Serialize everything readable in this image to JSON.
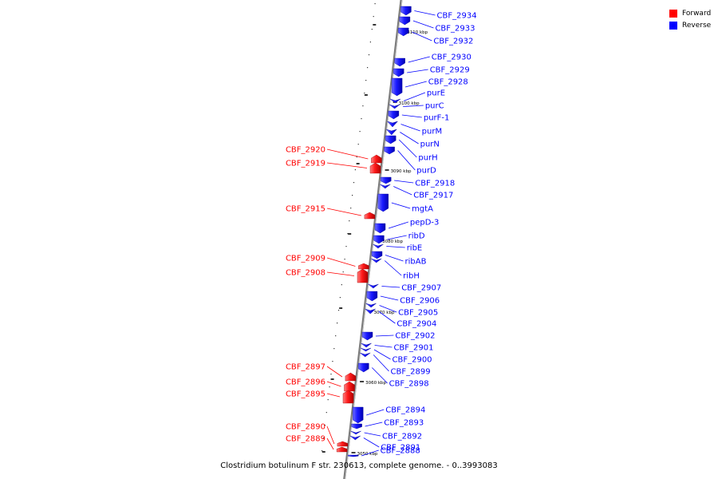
{
  "legend": {
    "forward_label": "Forward",
    "reverse_label": "Reverse",
    "forward_color": "#ff0000",
    "reverse_color": "#0000ff"
  },
  "caption": "Clostridium botulinum F str. 230613, complete genome. - 0..3993083",
  "position_markers": [
    {
      "text": "3110 kbp"
    },
    {
      "text": "3100 kbp"
    },
    {
      "text": "3090 kbp"
    },
    {
      "text": "3080 kbp"
    },
    {
      "text": "3070 kbp"
    },
    {
      "text": "3060 kbp"
    },
    {
      "text": "3050 kbp"
    }
  ],
  "genes": [
    {
      "name": "CBF_2934",
      "strand": "reverse"
    },
    {
      "name": "CBF_2933",
      "strand": "reverse"
    },
    {
      "name": "CBF_2932",
      "strand": "reverse"
    },
    {
      "name": "CBF_2930",
      "strand": "reverse"
    },
    {
      "name": "CBF_2929",
      "strand": "reverse"
    },
    {
      "name": "CBF_2928",
      "strand": "reverse"
    },
    {
      "name": "purE",
      "strand": "reverse"
    },
    {
      "name": "purC",
      "strand": "reverse"
    },
    {
      "name": "purF-1",
      "strand": "reverse"
    },
    {
      "name": "purM",
      "strand": "reverse"
    },
    {
      "name": "purN",
      "strand": "reverse"
    },
    {
      "name": "purH",
      "strand": "reverse"
    },
    {
      "name": "purD",
      "strand": "reverse"
    },
    {
      "name": "CBF_2920",
      "strand": "forward"
    },
    {
      "name": "CBF_2919",
      "strand": "forward"
    },
    {
      "name": "CBF_2918",
      "strand": "reverse"
    },
    {
      "name": "CBF_2917",
      "strand": "reverse"
    },
    {
      "name": "mgtA",
      "strand": "reverse"
    },
    {
      "name": "CBF_2915",
      "strand": "forward"
    },
    {
      "name": "pepD-3",
      "strand": "reverse"
    },
    {
      "name": "ribD",
      "strand": "reverse"
    },
    {
      "name": "ribE",
      "strand": "reverse"
    },
    {
      "name": "CBF_2909",
      "strand": "forward"
    },
    {
      "name": "ribAB",
      "strand": "reverse"
    },
    {
      "name": "CBF_2908",
      "strand": "forward"
    },
    {
      "name": "ribH",
      "strand": "reverse"
    },
    {
      "name": "CBF_2907",
      "strand": "reverse"
    },
    {
      "name": "CBF_2906",
      "strand": "reverse"
    },
    {
      "name": "CBF_2905",
      "strand": "reverse"
    },
    {
      "name": "CBF_2904",
      "strand": "reverse"
    },
    {
      "name": "CBF_2902",
      "strand": "reverse"
    },
    {
      "name": "CBF_2901",
      "strand": "reverse"
    },
    {
      "name": "CBF_2900",
      "strand": "reverse"
    },
    {
      "name": "CBF_2899",
      "strand": "reverse"
    },
    {
      "name": "CBF_2898",
      "strand": "reverse"
    },
    {
      "name": "CBF_2897",
      "strand": "forward"
    },
    {
      "name": "CBF_2896",
      "strand": "forward"
    },
    {
      "name": "CBF_2895",
      "strand": "forward"
    },
    {
      "name": "CBF_2894",
      "strand": "reverse"
    },
    {
      "name": "CBF_2893",
      "strand": "reverse"
    },
    {
      "name": "CBF_2892",
      "strand": "reverse"
    },
    {
      "name": "CBF_2891",
      "strand": "reverse"
    },
    {
      "name": "CBF_2890",
      "strand": "forward"
    },
    {
      "name": "CBF_2889",
      "strand": "forward"
    },
    {
      "name": "CBF_2888",
      "strand": "reverse"
    }
  ]
}
